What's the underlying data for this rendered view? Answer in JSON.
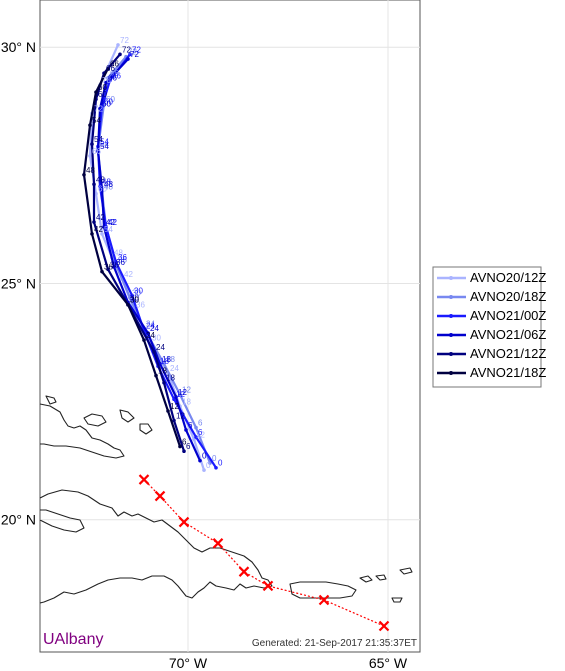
{
  "chart_data": {
    "type": "line",
    "title": "",
    "xlabel": "",
    "ylabel": "",
    "xlim": [
      -73.7,
      -64.2
    ],
    "ylim": [
      17.2,
      31.0
    ],
    "x_ticks": [
      {
        "value": -70,
        "label": "70° W"
      },
      {
        "value": -65,
        "label": "65° W"
      }
    ],
    "y_ticks": [
      {
        "value": 30,
        "label": "30° N"
      },
      {
        "value": 25,
        "label": "25° N"
      },
      {
        "value": 20,
        "label": "20° N"
      }
    ],
    "grid": true,
    "legend_position": "right",
    "series": [
      {
        "name": "AVNO20/12Z",
        "color": "#aab4ff",
        "points": [
          {
            "lon": -69.6,
            "lat": 21.05,
            "label": "0"
          },
          {
            "lon": -69.85,
            "lat": 21.7,
            "label": "12"
          },
          {
            "lon": -70.2,
            "lat": 22.4,
            "label": "18"
          },
          {
            "lon": -70.5,
            "lat": 23.1,
            "label": "24"
          },
          {
            "lon": -70.95,
            "lat": 23.75,
            "label": "30"
          },
          {
            "lon": -71.35,
            "lat": 24.45,
            "label": "36"
          },
          {
            "lon": -71.65,
            "lat": 25.1,
            "label": "42"
          },
          {
            "lon": -71.9,
            "lat": 25.55,
            "label": "48"
          },
          {
            "lon": -72.15,
            "lat": 26.05,
            "label": "54"
          },
          {
            "lon": -72.3,
            "lat": 26.9,
            "label": "60"
          },
          {
            "lon": -72.45,
            "lat": 27.7,
            "label": "66"
          },
          {
            "lon": -72.4,
            "lat": 28.6,
            "label": "72"
          },
          {
            "lon": -72.2,
            "lat": 29.2,
            "label": "78"
          },
          {
            "lon": -71.75,
            "lat": 30.05,
            "label": "72"
          }
        ]
      },
      {
        "name": "AVNO20/18Z",
        "color": "#7888f0",
        "points": [
          {
            "lon": -69.45,
            "lat": 21.2,
            "label": "0"
          },
          {
            "lon": -69.8,
            "lat": 21.95,
            "label": "6"
          },
          {
            "lon": -70.2,
            "lat": 22.65,
            "label": "12"
          },
          {
            "lon": -70.6,
            "lat": 23.3,
            "label": "18"
          },
          {
            "lon": -71.1,
            "lat": 24.05,
            "label": "24"
          },
          {
            "lon": -71.45,
            "lat": 24.7,
            "label": "30"
          },
          {
            "lon": -71.8,
            "lat": 25.4,
            "label": "36"
          },
          {
            "lon": -72.05,
            "lat": 26.2,
            "label": "42"
          },
          {
            "lon": -72.15,
            "lat": 26.95,
            "label": "48"
          },
          {
            "lon": -72.25,
            "lat": 27.85,
            "label": "54"
          },
          {
            "lon": -72.1,
            "lat": 28.8,
            "label": "60"
          },
          {
            "lon": -72.0,
            "lat": 29.35,
            "label": "66"
          },
          {
            "lon": -71.55,
            "lat": 29.8,
            "label": "72"
          }
        ]
      },
      {
        "name": "AVNO21/00Z",
        "color": "#1a1aff",
        "points": [
          {
            "lon": -69.3,
            "lat": 21.1,
            "label": "0"
          },
          {
            "lon": -69.8,
            "lat": 21.75,
            "label": "6"
          },
          {
            "lon": -70.35,
            "lat": 22.55,
            "label": "12"
          },
          {
            "lon": -70.75,
            "lat": 23.25,
            "label": "18"
          },
          {
            "lon": -71.1,
            "lat": 24.0,
            "label": "24"
          },
          {
            "lon": -71.4,
            "lat": 24.75,
            "label": "30"
          },
          {
            "lon": -71.8,
            "lat": 25.45,
            "label": "36"
          },
          {
            "lon": -72.05,
            "lat": 26.2,
            "label": "42"
          },
          {
            "lon": -72.2,
            "lat": 27.05,
            "label": "48"
          },
          {
            "lon": -72.25,
            "lat": 27.9,
            "label": "54"
          },
          {
            "lon": -72.15,
            "lat": 28.75,
            "label": "60"
          },
          {
            "lon": -71.95,
            "lat": 29.3,
            "label": "66"
          },
          {
            "lon": -71.45,
            "lat": 29.85,
            "label": "72"
          }
        ]
      },
      {
        "name": "AVNO21/06Z",
        "color": "#0000cd",
        "points": [
          {
            "lon": -69.7,
            "lat": 21.25,
            "label": "0"
          },
          {
            "lon": -70.05,
            "lat": 21.9,
            "label": "6"
          },
          {
            "lon": -70.3,
            "lat": 22.6,
            "label": "12"
          },
          {
            "lon": -70.7,
            "lat": 23.3,
            "label": "18"
          },
          {
            "lon": -71.0,
            "lat": 23.95,
            "label": "24"
          },
          {
            "lon": -71.5,
            "lat": 24.6,
            "label": "30"
          },
          {
            "lon": -71.85,
            "lat": 25.35,
            "label": "36"
          },
          {
            "lon": -72.1,
            "lat": 26.2,
            "label": "42"
          },
          {
            "lon": -72.15,
            "lat": 27.0,
            "label": "48"
          },
          {
            "lon": -72.25,
            "lat": 27.8,
            "label": "54"
          },
          {
            "lon": -72.2,
            "lat": 28.7,
            "label": "60"
          },
          {
            "lon": -72.05,
            "lat": 29.25,
            "label": "66"
          },
          {
            "lon": -71.5,
            "lat": 29.75,
            "label": "72"
          }
        ]
      },
      {
        "name": "AVNO21/12Z",
        "color": "#00007f",
        "points": [
          {
            "lon": -70.1,
            "lat": 21.45,
            "label": "6"
          },
          {
            "lon": -70.35,
            "lat": 22.1,
            "label": "12"
          },
          {
            "lon": -70.6,
            "lat": 22.9,
            "label": "18"
          },
          {
            "lon": -70.85,
            "lat": 23.55,
            "label": "24"
          },
          {
            "lon": -71.5,
            "lat": 24.55,
            "label": "30"
          },
          {
            "lon": -72.0,
            "lat": 25.3,
            "label": "36"
          },
          {
            "lon": -72.35,
            "lat": 26.3,
            "label": "42"
          },
          {
            "lon": -72.35,
            "lat": 27.1,
            "label": "48"
          },
          {
            "lon": -72.4,
            "lat": 27.95,
            "label": "54"
          },
          {
            "lon": -72.3,
            "lat": 28.9,
            "label": "60"
          },
          {
            "lon": -72.1,
            "lat": 29.45,
            "label": "66"
          },
          {
            "lon": -71.7,
            "lat": 29.85,
            "label": "72"
          }
        ]
      },
      {
        "name": "AVNO21/18Z",
        "color": "#000040",
        "points": [
          {
            "lon": -70.2,
            "lat": 21.55,
            "label": "6"
          },
          {
            "lon": -70.5,
            "lat": 22.3,
            "label": "12"
          },
          {
            "lon": -70.8,
            "lat": 23.05,
            "label": "18"
          },
          {
            "lon": -71.1,
            "lat": 23.8,
            "label": "24"
          },
          {
            "lon": -71.5,
            "lat": 24.55,
            "label": "30"
          },
          {
            "lon": -72.15,
            "lat": 25.25,
            "label": "36"
          },
          {
            "lon": -72.4,
            "lat": 26.05,
            "label": "42"
          },
          {
            "lon": -72.6,
            "lat": 27.3,
            "label": "48"
          },
          {
            "lon": -72.45,
            "lat": 28.35,
            "label": "54"
          },
          {
            "lon": -72.3,
            "lat": 29.05,
            "label": "60"
          },
          {
            "lon": -72.0,
            "lat": 29.55,
            "label": "66"
          }
        ]
      }
    ],
    "observed_track": {
      "color": "#ff0000",
      "points": [
        {
          "lon": -65.1,
          "lat": 17.75
        },
        {
          "lon": -66.6,
          "lat": 18.3
        },
        {
          "lon": -68.0,
          "lat": 18.6
        },
        {
          "lon": -68.6,
          "lat": 18.9
        },
        {
          "lon": -69.25,
          "lat": 19.5
        },
        {
          "lon": -70.1,
          "lat": 19.95
        },
        {
          "lon": -70.7,
          "lat": 20.5
        },
        {
          "lon": -71.1,
          "lat": 20.85
        }
      ]
    }
  },
  "branding": {
    "organization": "UAlbany",
    "generated": "Generated: 21-Sep-2017 21:35:37ET"
  }
}
